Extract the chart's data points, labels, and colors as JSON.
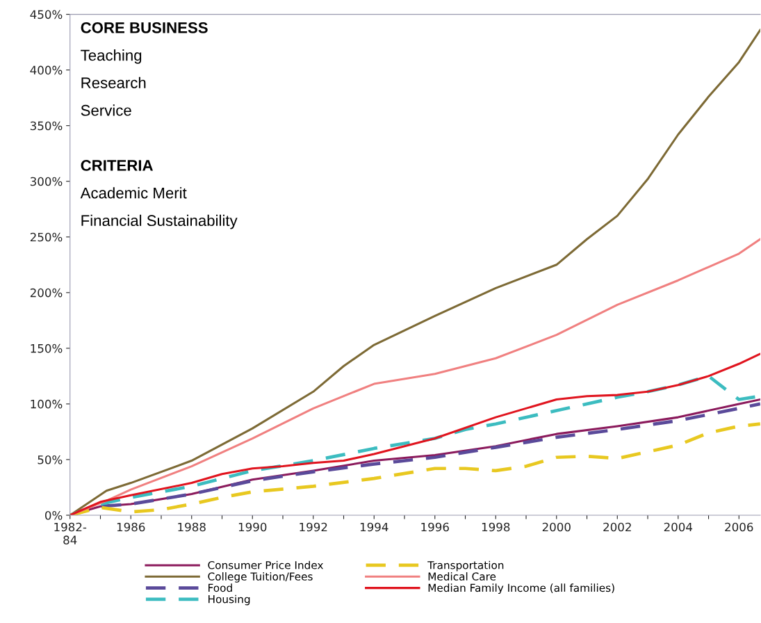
{
  "chart_data": {
    "type": "line",
    "annotations": [
      "CORE BUSINESS",
      "Teaching",
      "Research",
      "Service",
      "CRITERIA",
      "Academic Merit",
      "Financial Sustainability"
    ],
    "xlim": [
      1984,
      2006.7
    ],
    "xticks": [
      {
        "value": 1984,
        "label": "1982-\n84"
      },
      {
        "value": 1985,
        "label": null
      },
      1986,
      {
        "value": 1987,
        "label": null
      },
      1988,
      {
        "value": 1989,
        "label": null
      },
      1990,
      {
        "value": 1991,
        "label": null
      },
      1992,
      {
        "value": 1993,
        "label": null
      },
      1994,
      {
        "value": 1995,
        "label": null
      },
      1996,
      {
        "value": 1997,
        "label": null
      },
      1998,
      {
        "value": 1999,
        "label": null
      },
      2000,
      {
        "value": 2001,
        "label": null
      },
      2002,
      {
        "value": 2003,
        "label": null
      },
      2004,
      {
        "value": 2005,
        "label": null
      },
      2006
    ],
    "ylim": [
      0,
      450
    ],
    "yticks": [
      {
        "value": 0,
        "label": "0%"
      },
      {
        "value": 50,
        "label": "50%"
      },
      {
        "value": 100,
        "label": "100%"
      },
      {
        "value": 150,
        "label": "150%"
      },
      {
        "value": 200,
        "label": "200%"
      },
      {
        "value": 250,
        "label": "250%"
      },
      {
        "value": 300,
        "label": "300%"
      },
      {
        "value": 350,
        "label": "350%"
      },
      {
        "value": 400,
        "label": "400%"
      },
      {
        "value": 450,
        "label": "450%"
      }
    ],
    "grid": false,
    "legend": "bottom",
    "marker": "none",
    "series": [
      {
        "name": "Consumer Price Index",
        "color": "#8b1a5c",
        "line_style": "solid",
        "x": [
          1984,
          1985,
          1986,
          1988,
          1990,
          1992,
          1994,
          1996,
          1998,
          2000,
          2002,
          2004,
          2006,
          2006.7
        ],
        "values": [
          0,
          8,
          10,
          19,
          32,
          40,
          49,
          54,
          62,
          73,
          80,
          88,
          100,
          104
        ]
      },
      {
        "name": "College Tuition/Fees",
        "color": "#7d6a35",
        "line_style": "solid",
        "x": [
          1984,
          1985.2,
          1986,
          1988,
          1990,
          1992,
          1993,
          1994,
          1996,
          1998,
          2000,
          2001,
          2002,
          2003,
          2004,
          2005,
          2006,
          2006.7
        ],
        "values": [
          0,
          22,
          29,
          49,
          78,
          111,
          134,
          153,
          179,
          204,
          225,
          248,
          269,
          302,
          342,
          376,
          407,
          436
        ]
      },
      {
        "name": "Food",
        "color": "#5a4a9a",
        "line_style": "dashed",
        "x": [
          1984,
          1985,
          1986,
          1988,
          1990,
          1992,
          1994,
          1996,
          1998,
          2000,
          2002,
          2004,
          2006,
          2006.7
        ],
        "values": [
          0,
          8,
          10,
          19,
          31,
          39,
          46,
          52,
          61,
          70,
          77,
          85,
          96,
          100
        ]
      },
      {
        "name": "Housing",
        "color": "#3cbcc0",
        "line_style": "dashed",
        "x": [
          1984,
          1985,
          1986,
          1988,
          1990,
          1992,
          1994,
          1996,
          1997,
          1998,
          2000,
          2002,
          2003,
          2004,
          2005,
          2006,
          2006.7
        ],
        "values": [
          0,
          10,
          16,
          26,
          40,
          49,
          60,
          69,
          77,
          82,
          94,
          106,
          111,
          117,
          125,
          104,
          107
        ]
      },
      {
        "name": "Transportation",
        "color": "#e8c820",
        "line_style": "dashed",
        "x": [
          1984,
          1985,
          1986,
          1987,
          1988,
          1989,
          1990,
          1992,
          1994,
          1996,
          1997,
          1998,
          1999,
          2000,
          2001,
          2002,
          2003,
          2004,
          2005,
          2006,
          2006.7
        ],
        "values": [
          0,
          7,
          3,
          5,
          10,
          16,
          21,
          26,
          33,
          42,
          42,
          40,
          44,
          52,
          53,
          51,
          57,
          63,
          74,
          80,
          82
        ]
      },
      {
        "name": "Medical Care",
        "color": "#f08080",
        "line_style": "solid",
        "x": [
          1984,
          1985.2,
          1986,
          1988,
          1990,
          1992,
          1994,
          1996,
          1998,
          2000,
          2002,
          2004,
          2006,
          2006.7
        ],
        "values": [
          0,
          13,
          23,
          44,
          69,
          96,
          118,
          127,
          141,
          162,
          189,
          211,
          235,
          248
        ]
      },
      {
        "name": "Median Family Income (all families)",
        "color": "#e0141e",
        "line_style": "solid",
        "x": [
          1984,
          1985,
          1986,
          1988,
          1989,
          1990,
          1991,
          1992,
          1993,
          1994,
          1996,
          1998,
          2000,
          2001,
          2002,
          2003,
          2004,
          2005,
          2006,
          2006.7
        ],
        "values": [
          0,
          12,
          18,
          29,
          37,
          42,
          44,
          47,
          49,
          55,
          69,
          88,
          104,
          107,
          108,
          111,
          117,
          125,
          136,
          145
        ]
      }
    ]
  }
}
